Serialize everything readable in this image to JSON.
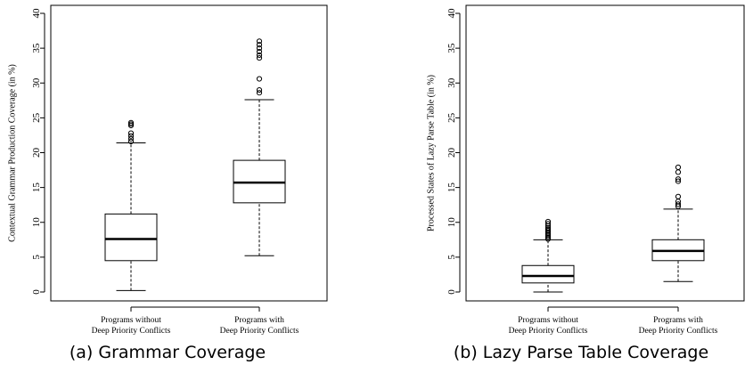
{
  "captions": {
    "a": "(a) Grammar Coverage",
    "b": "(b) Lazy Parse Table Coverage"
  },
  "chart_data": [
    {
      "type": "box",
      "title": "",
      "xlabel": "",
      "ylabel": "Contextual Grammar Production Coverage (in %)",
      "ylim": [
        0,
        40
      ],
      "yticks": [
        0,
        5,
        10,
        15,
        20,
        25,
        30,
        35,
        40
      ],
      "categories": [
        [
          "Programs without",
          "Deep Priority Conflicts"
        ],
        [
          "Programs with",
          "Deep Priority Conflicts"
        ]
      ],
      "boxes": [
        {
          "whisker_low": 0.2,
          "q1": 4.5,
          "median": 7.6,
          "q3": 11.2,
          "whisker_high": 21.4,
          "outliers": [
            21.6,
            22.0,
            22.4,
            22.8,
            23.9,
            24.1,
            24.3
          ]
        },
        {
          "whisker_low": 5.2,
          "q1": 12.8,
          "median": 15.7,
          "q3": 18.9,
          "whisker_high": 27.6,
          "outliers": [
            28.6,
            29.0,
            30.6,
            33.6,
            34.0,
            34.5,
            35.0,
            35.5,
            36.0
          ]
        }
      ]
    },
    {
      "type": "box",
      "title": "",
      "xlabel": "",
      "ylabel": "Processed States of Lazy Parse Table (in %)",
      "ylim": [
        0,
        40
      ],
      "yticks": [
        0,
        5,
        10,
        15,
        20,
        25,
        30,
        35,
        40
      ],
      "categories": [
        [
          "Programs without",
          "Deep Priority Conflicts"
        ],
        [
          "Programs with",
          "Deep Priority Conflicts"
        ]
      ],
      "boxes": [
        {
          "whisker_low": 0.0,
          "q1": 1.3,
          "median": 2.3,
          "q3": 3.8,
          "whisker_high": 7.5,
          "outliers": [
            7.6,
            7.8,
            8.0,
            8.2,
            8.4,
            8.6,
            8.8,
            9.0,
            9.2,
            9.5,
            9.8,
            10.1
          ]
        },
        {
          "whisker_low": 1.5,
          "q1": 4.5,
          "median": 5.9,
          "q3": 7.5,
          "whisker_high": 11.9,
          "outliers": [
            12.3,
            12.6,
            13.0,
            13.7,
            15.9,
            16.2,
            17.2,
            17.9
          ]
        }
      ]
    }
  ]
}
